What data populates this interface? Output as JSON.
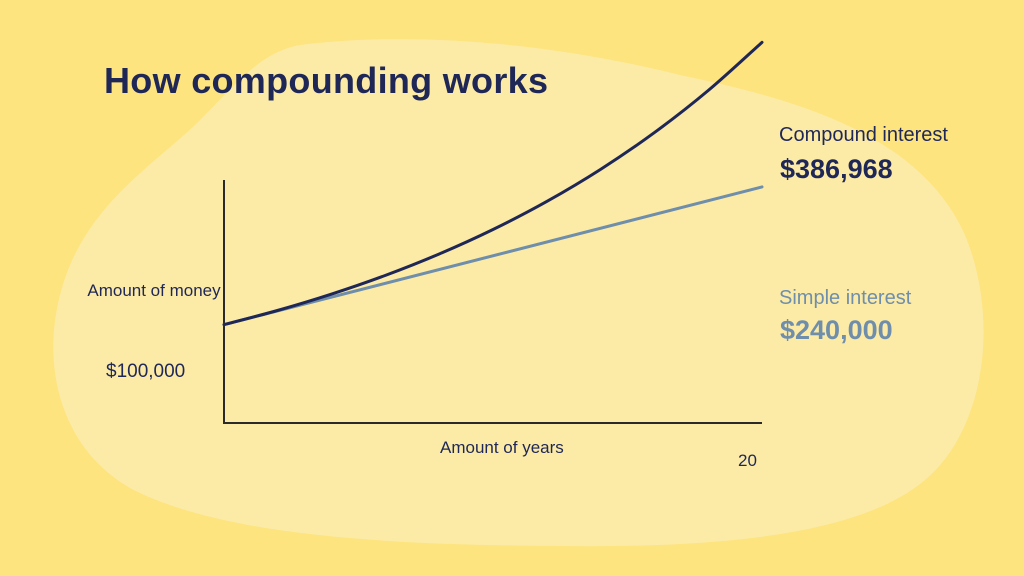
{
  "title": "How compounding works",
  "colors": {
    "background": "#FDE47F",
    "blob": "#FCEBA6",
    "compound": "#1f2757",
    "simple": "#6f8eab",
    "axis": "#2a2a2a"
  },
  "chart_data": {
    "type": "line",
    "ylabel": "Amount of money",
    "xlabel": "Amount of years",
    "x_tick_labels": [
      "20"
    ],
    "y_tick_labels": [
      "$100,000"
    ],
    "xlim": [
      0,
      20
    ],
    "ylim": [
      0,
      430000
    ],
    "grid": false,
    "series": [
      {
        "name": "Compound interest",
        "end_label": "$386,968",
        "x": [
          0,
          2,
          4,
          6,
          8,
          10,
          12,
          14,
          16,
          18,
          20
        ],
        "values": [
          100000,
          114490,
          131080,
          150073,
          171819,
          196715,
          225219,
          257853,
          295216,
          337993,
          386968
        ]
      },
      {
        "name": "Simple interest",
        "end_label": "$240,000",
        "x": [
          0,
          20
        ],
        "values": [
          100000,
          240000
        ]
      }
    ]
  }
}
